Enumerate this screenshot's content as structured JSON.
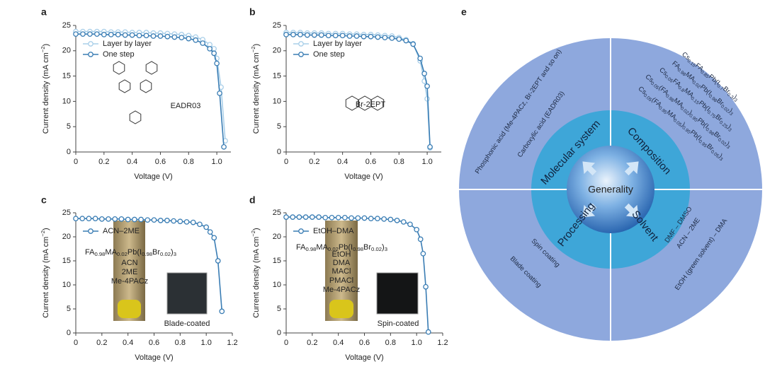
{
  "chart_data": [
    {
      "type": "line",
      "panel": "a",
      "xlabel": "Voltage (V)",
      "ylabel": [
        "Current density (mA cm",
        "−2",
        ")"
      ],
      "xlim": [
        0,
        1.1
      ],
      "xticks": [
        0,
        0.2,
        0.4,
        0.6,
        0.8,
        {
          "value": 1,
          "label": "1.0"
        }
      ],
      "ylim": [
        0,
        25
      ],
      "yticks": [
        0,
        5,
        10,
        15,
        20,
        25
      ],
      "legend": "upper left",
      "annotations": [
        "EADR03"
      ],
      "series": [
        {
          "name": "Layer by layer",
          "color": "#a9cfe9",
          "x": [
            0,
            0.05,
            0.1,
            0.15,
            0.2,
            0.25,
            0.3,
            0.35,
            0.4,
            0.45,
            0.5,
            0.55,
            0.6,
            0.65,
            0.7,
            0.75,
            0.8,
            0.85,
            0.9,
            0.95,
            0.98,
            1.0,
            1.03,
            1.06
          ],
          "values": [
            23.8,
            23.8,
            23.8,
            23.8,
            23.8,
            23.7,
            23.7,
            23.7,
            23.6,
            23.6,
            23.6,
            23.5,
            23.5,
            23.4,
            23.3,
            23.2,
            23.0,
            22.7,
            22.2,
            21.2,
            20.4,
            18.5,
            12.8,
            2.2
          ]
        },
        {
          "name": "One step",
          "color": "#3a7db4",
          "x": [
            0,
            0.05,
            0.1,
            0.15,
            0.2,
            0.25,
            0.3,
            0.35,
            0.4,
            0.45,
            0.5,
            0.55,
            0.6,
            0.65,
            0.7,
            0.75,
            0.8,
            0.85,
            0.9,
            0.95,
            0.98,
            1.0,
            1.02,
            1.05
          ],
          "values": [
            23.3,
            23.3,
            23.3,
            23.3,
            23.2,
            23.2,
            23.2,
            23.1,
            23.1,
            23.0,
            23.0,
            22.9,
            22.9,
            22.8,
            22.7,
            22.6,
            22.4,
            22.1,
            21.5,
            20.4,
            19.5,
            17.5,
            11.6,
            1.0
          ]
        }
      ]
    },
    {
      "type": "line",
      "panel": "b",
      "xlabel": "Voltage (V)",
      "ylabel": [
        "Current density (mA cm",
        "−2",
        ")"
      ],
      "xlim": [
        0,
        1.1
      ],
      "xticks": [
        0,
        0.2,
        0.4,
        0.6,
        0.8,
        {
          "value": 1,
          "label": "1.0"
        }
      ],
      "ylim": [
        0,
        25
      ],
      "yticks": [
        0,
        5,
        10,
        15,
        20,
        25
      ],
      "legend": "upper left",
      "annotations": [
        "Br-2EPT"
      ],
      "series": [
        {
          "name": "Layer by layer",
          "color": "#a9cfe9",
          "x": [
            0,
            0.05,
            0.1,
            0.15,
            0.2,
            0.25,
            0.3,
            0.35,
            0.4,
            0.45,
            0.5,
            0.55,
            0.6,
            0.65,
            0.7,
            0.75,
            0.8,
            0.85,
            0.9,
            0.95,
            0.98,
            1.0,
            1.02
          ],
          "values": [
            23.6,
            23.6,
            23.6,
            23.5,
            23.5,
            23.5,
            23.4,
            23.4,
            23.4,
            23.3,
            23.3,
            23.2,
            23.2,
            23.1,
            23.0,
            22.9,
            22.6,
            22.2,
            21.4,
            18.0,
            14.0,
            10.5,
            0.8
          ]
        },
        {
          "name": "One step",
          "color": "#3a7db4",
          "x": [
            0,
            0.05,
            0.1,
            0.15,
            0.2,
            0.25,
            0.3,
            0.35,
            0.4,
            0.45,
            0.5,
            0.55,
            0.6,
            0.65,
            0.7,
            0.75,
            0.8,
            0.85,
            0.9,
            0.95,
            0.98,
            1.0,
            1.02
          ],
          "values": [
            23.2,
            23.2,
            23.2,
            23.1,
            23.1,
            23.1,
            23.0,
            23.0,
            23.0,
            22.9,
            22.9,
            22.8,
            22.8,
            22.7,
            22.6,
            22.5,
            22.3,
            22.0,
            21.3,
            18.5,
            15.5,
            13.0,
            1.0
          ]
        }
      ]
    },
    {
      "type": "line",
      "panel": "c",
      "xlabel": "Voltage (V)",
      "ylabel": [
        "Current density (mA cm",
        "−2",
        ")"
      ],
      "xlim": [
        0,
        1.2
      ],
      "xticks": [
        0,
        0.2,
        0.4,
        0.6,
        0.8,
        {
          "value": 1,
          "label": "1.0"
        },
        1.2
      ],
      "ylim": [
        0,
        25
      ],
      "yticks": [
        0,
        5,
        10,
        15,
        20,
        25
      ],
      "legend": "upper left",
      "formula": [
        "FA",
        "0.98",
        "MA",
        "0.02",
        "Pb(I",
        "0.98",
        "Br",
        "0.02",
        ")",
        "3"
      ],
      "annotations": [
        "ACN",
        "2ME",
        "Me-4PACz",
        "Blade-coated"
      ],
      "series": [
        {
          "name": "ACN–2ME",
          "color": "#3a7db4",
          "x": [
            0,
            0.05,
            0.1,
            0.15,
            0.2,
            0.25,
            0.3,
            0.35,
            0.4,
            0.45,
            0.5,
            0.55,
            0.6,
            0.65,
            0.7,
            0.75,
            0.8,
            0.85,
            0.9,
            0.95,
            1.0,
            1.03,
            1.06,
            1.09,
            1.12
          ],
          "values": [
            23.8,
            23.8,
            23.8,
            23.8,
            23.7,
            23.7,
            23.7,
            23.7,
            23.6,
            23.6,
            23.6,
            23.5,
            23.5,
            23.4,
            23.4,
            23.3,
            23.2,
            23.1,
            23.0,
            22.6,
            22.0,
            21.0,
            19.8,
            15.0,
            4.5
          ]
        }
      ]
    },
    {
      "type": "line",
      "panel": "d",
      "xlabel": "Voltage (V)",
      "ylabel": [
        "Current density (mA cm",
        "−2",
        ")"
      ],
      "xlim": [
        0,
        1.2
      ],
      "xticks": [
        0,
        0.2,
        0.4,
        0.6,
        0.8,
        {
          "value": 1,
          "label": "1.0"
        },
        1.2
      ],
      "ylim": [
        0,
        25
      ],
      "yticks": [
        0,
        5,
        10,
        15,
        20,
        25
      ],
      "legend": "upper left",
      "formula": [
        "FA",
        "0.98",
        "MA",
        "0.02",
        "Pb(I",
        "0.98",
        "Br",
        "0.02",
        ")",
        "3"
      ],
      "annotations": [
        "EtOH",
        "DMA",
        "MACl",
        "PMACl",
        "Me-4PACz",
        "Spin-coated"
      ],
      "series": [
        {
          "name": "EtOH–DMA",
          "color": "#3a7db4",
          "x": [
            0,
            0.05,
            0.1,
            0.15,
            0.2,
            0.25,
            0.3,
            0.35,
            0.4,
            0.45,
            0.5,
            0.55,
            0.6,
            0.65,
            0.7,
            0.75,
            0.8,
            0.85,
            0.9,
            0.95,
            1.0,
            1.03,
            1.05,
            1.07,
            1.09
          ],
          "values": [
            24.1,
            24.1,
            24.1,
            24.1,
            24.1,
            24.1,
            24.0,
            24.0,
            24.0,
            24.0,
            23.9,
            23.9,
            23.9,
            23.8,
            23.8,
            23.7,
            23.6,
            23.4,
            23.1,
            22.6,
            21.5,
            19.5,
            16.5,
            9.6,
            0.2
          ]
        }
      ]
    }
  ],
  "diagram": {
    "panel": "e",
    "center": "Generality",
    "quadrants": [
      {
        "name": "Molecular system",
        "items": [
          "Phosphonic acid (Me-4PACz, Br-2EPT and so on)",
          "Carboxylic acid (EADR03)"
        ]
      },
      {
        "name": "Composition",
        "items": [
          [
            "Cs",
            "0.15",
            "FA",
            "0.85",
            "Pb(I",
            "0.7",
            "Br",
            "0.3",
            ")",
            "3"
          ],
          [
            "FA",
            "0.98",
            "MA",
            "0.02",
            "Pb(I",
            "0.98",
            "Br",
            "0.02",
            ")",
            "3"
          ],
          [
            "Cs",
            "0.05",
            "FA",
            "0.8",
            "MA",
            "0.15",
            "Pb(I",
            "0.75",
            "Br",
            "0.25",
            ")",
            "3"
          ],
          [
            "Cs",
            "0.05",
            "(FA",
            "0.98",
            "MA",
            "0.02",
            ")",
            "0.95",
            "Pb(I",
            "0.98",
            "Br",
            "0.02",
            ")",
            "3"
          ],
          [
            "Cs",
            "0.05",
            "(FA",
            "0.95",
            "MA",
            "0.05",
            ")",
            "0.95",
            "Pb(I",
            "0.95",
            "Br",
            "0.05",
            ")",
            "3"
          ]
        ]
      },
      {
        "name": "Processing",
        "items": [
          "Spin coating",
          "Blade coating"
        ]
      },
      {
        "name": "Solvent",
        "items": [
          "DMF – DMSO",
          "ACN – 2ME",
          "EtOH (green solvent) – DMA"
        ]
      }
    ]
  }
}
